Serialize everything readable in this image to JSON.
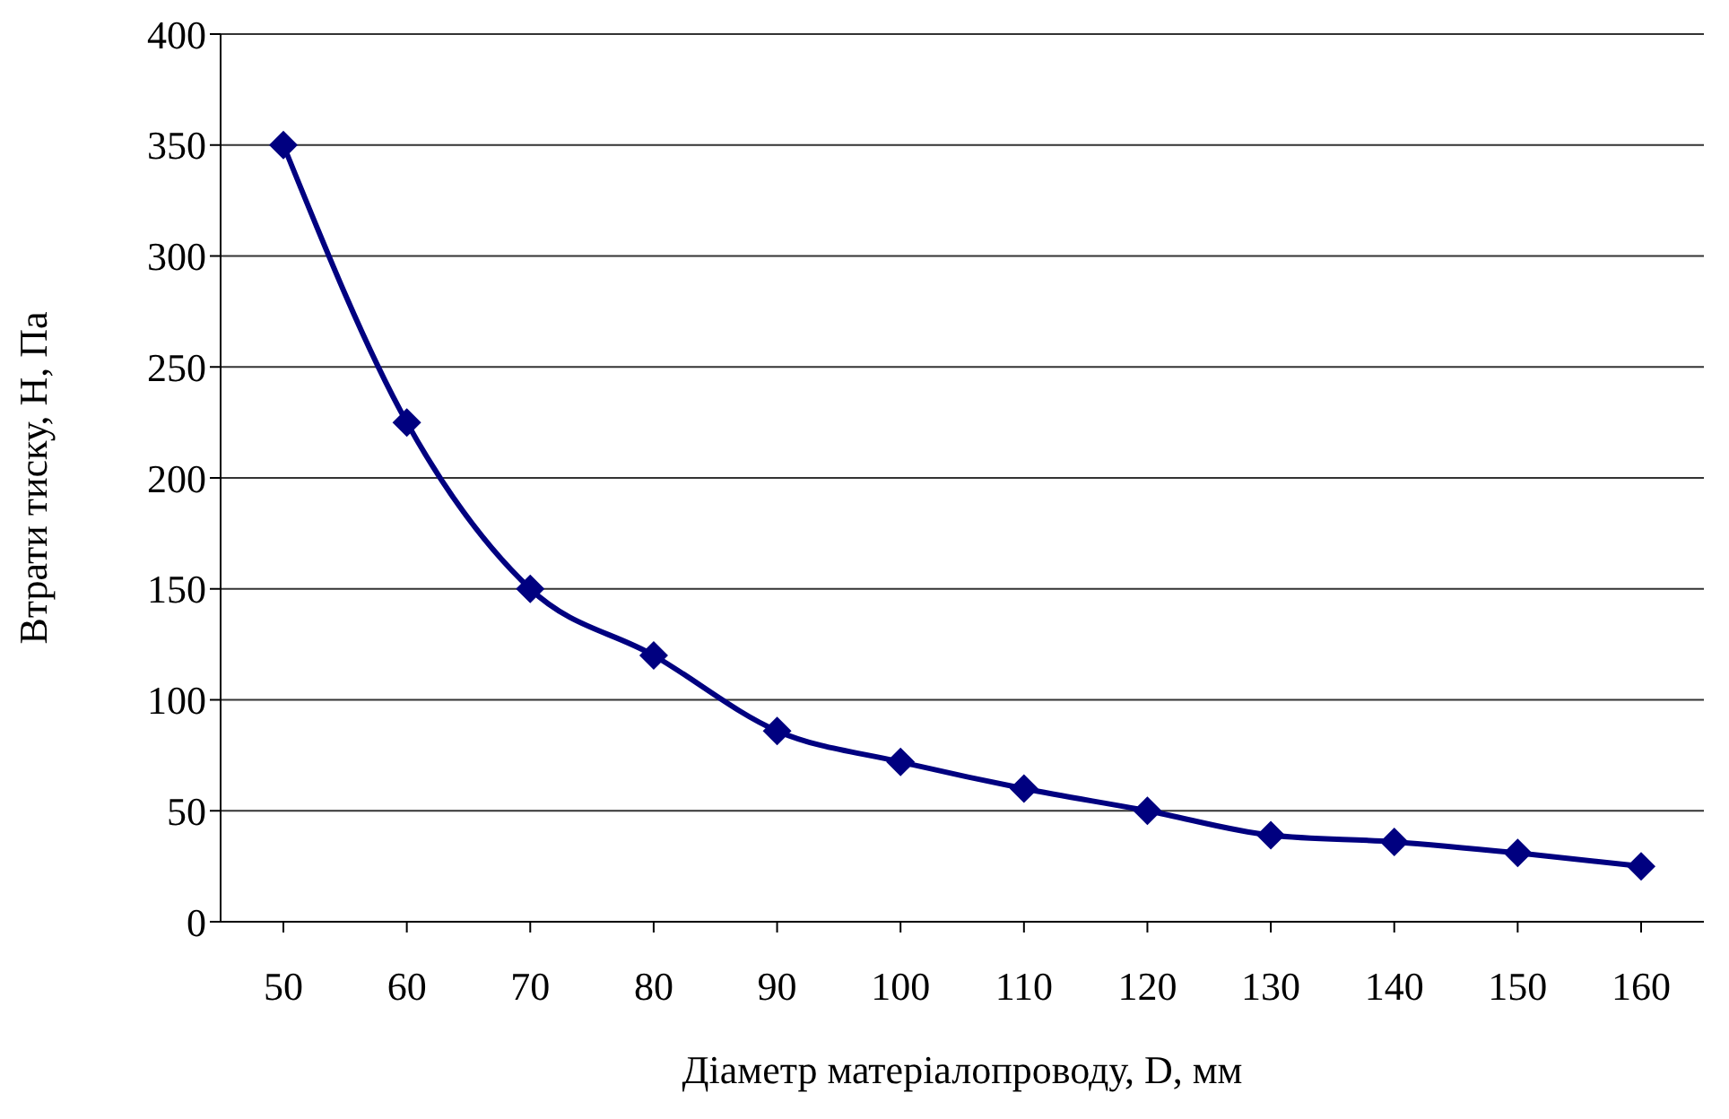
{
  "chart_data": {
    "type": "line",
    "xlabel": "Діаметр матеріалопроводу, D, мм",
    "ylabel": "Втрати тиску, H, Па",
    "categories": [
      "50",
      "60",
      "70",
      "80",
      "90",
      "100",
      "110",
      "120",
      "130",
      "140",
      "150",
      "160"
    ],
    "series": [
      {
        "color": "#000080",
        "values": [
          350,
          225,
          150,
          120,
          86,
          72,
          60,
          50,
          39,
          36,
          31,
          25
        ]
      }
    ],
    "ylim": [
      0,
      400
    ],
    "yticks": [
      0,
      50,
      100,
      150,
      200,
      250,
      300,
      350,
      400
    ],
    "grid": "y",
    "marker": "diamond",
    "line_style": "solid",
    "legend": false
  }
}
